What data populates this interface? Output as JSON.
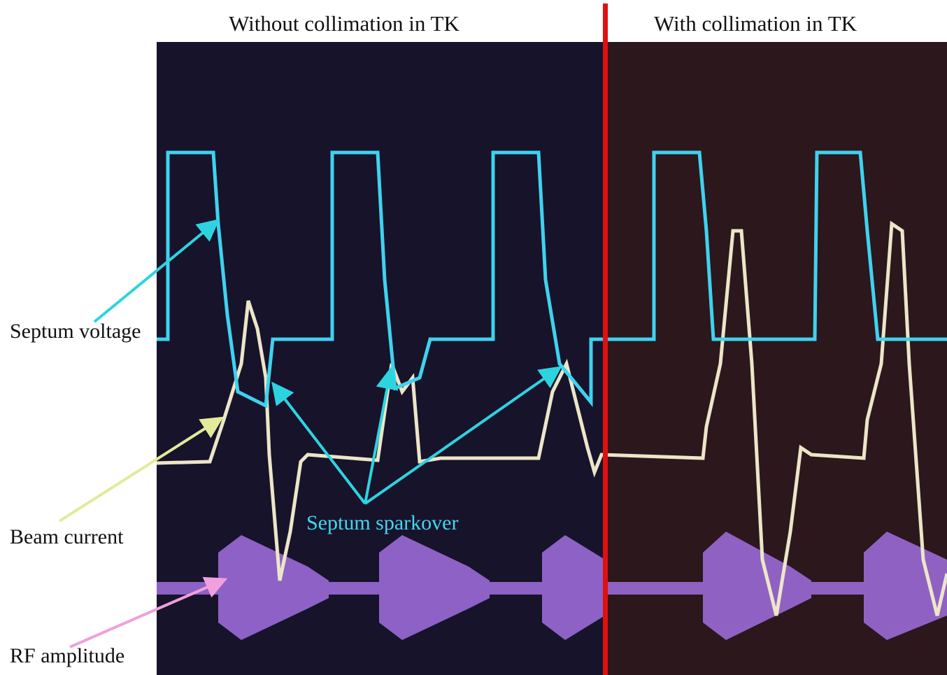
{
  "titles": {
    "left": "Without collimation in TK",
    "right": "With collimation in TK"
  },
  "labels": {
    "septum_voltage": "Septum voltage",
    "beam_current": "Beam current",
    "rf_amplitude": "RF amplitude",
    "septum_sparkover": "Septum sparkover"
  }
}
